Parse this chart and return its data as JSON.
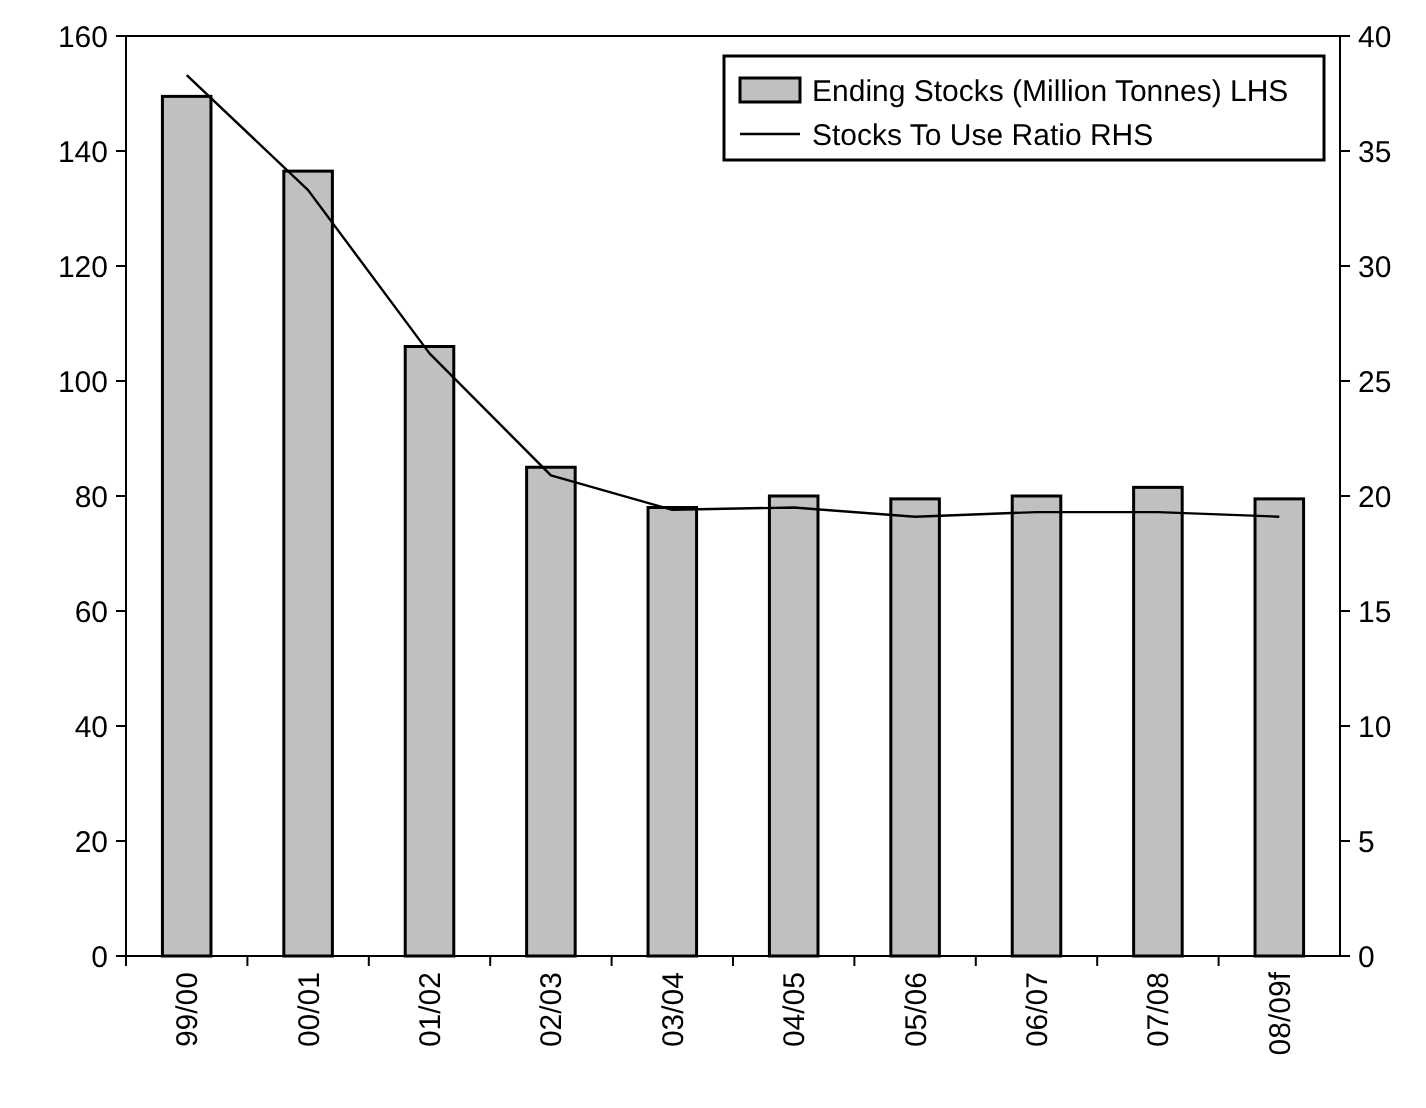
{
  "chart_data": {
    "type": "bar",
    "categories": [
      "99/00",
      "00/01",
      "01/02",
      "02/03",
      "03/04",
      "04/05",
      "05/06",
      "06/07",
      "07/08",
      "08/09f"
    ],
    "series": [
      {
        "name": "Ending Stocks (Million Tonnes) LHS",
        "color": "#c0c0c0",
        "values": [
          149.5,
          136.5,
          106,
          85,
          78,
          80,
          79.5,
          80,
          81.5,
          79.5
        ]
      },
      {
        "name": "Stocks To Use Ratio RHS",
        "type": "line",
        "axis": "y2",
        "color": "#000000",
        "values": [
          38.3,
          33.3,
          26.2,
          20.9,
          19.4,
          19.5,
          19.1,
          19.3,
          19.3,
          19.1
        ]
      }
    ],
    "ylim": [
      0,
      160
    ],
    "yticks": [
      0,
      20,
      40,
      60,
      80,
      100,
      120,
      140,
      160
    ],
    "y2lim": [
      0,
      40
    ],
    "y2ticks": [
      0,
      5,
      10,
      15,
      20,
      25,
      30,
      35,
      40
    ],
    "grid": false,
    "legend": "top right",
    "marker": "none",
    "line_style": "solid"
  }
}
